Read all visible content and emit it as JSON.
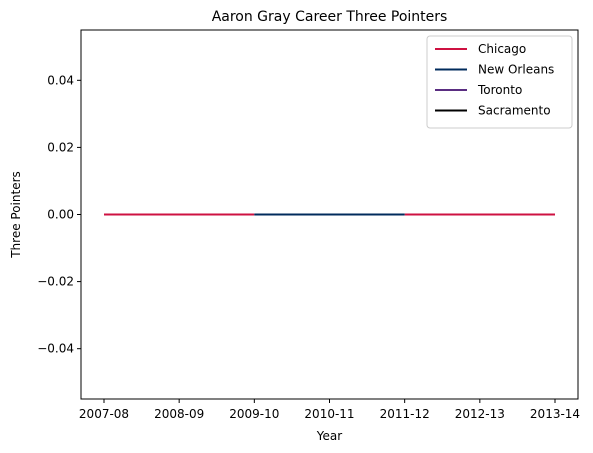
{
  "chart_data": {
    "type": "line",
    "title": "Aaron Gray Career Three Pointers",
    "xlabel": "Year",
    "ylabel": "Three Pointers",
    "categories": [
      "2007-08",
      "2008-09",
      "2009-10",
      "2010-11",
      "2011-12",
      "2012-13",
      "2013-14"
    ],
    "y_ticks": [
      "−0.04",
      "−0.02",
      "0.00",
      "0.02",
      "0.04"
    ],
    "y_tick_values": [
      -0.04,
      -0.02,
      0.0,
      0.02,
      0.04
    ],
    "ylim": [
      -0.055,
      0.055
    ],
    "grid": false,
    "legend_position": "top-right",
    "series": [
      {
        "name": "Chicago",
        "color": "#ce1141",
        "segments": [
          {
            "x": [
              "2007-08",
              "2008-09",
              "2009-10"
            ],
            "y": [
              0,
              0,
              0
            ]
          },
          {
            "x": [
              "2011-12",
              "2012-13",
              "2013-14"
            ],
            "y": [
              0,
              0,
              0
            ]
          }
        ]
      },
      {
        "name": "New Orleans",
        "color": "#002b5c",
        "segments": [
          {
            "x": [
              "2009-10",
              "2010-11",
              "2011-12"
            ],
            "y": [
              0,
              0,
              0
            ]
          }
        ]
      },
      {
        "name": "Toronto",
        "color": "#5a2d81",
        "segments": []
      },
      {
        "name": "Sacramento",
        "color": "#000000",
        "segments": []
      }
    ]
  }
}
